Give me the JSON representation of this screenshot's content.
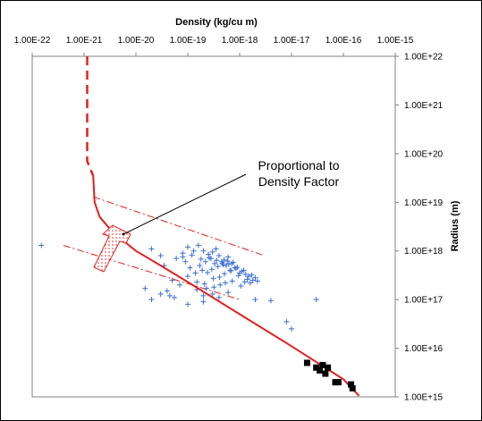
{
  "chart_data": {
    "type": "scatter",
    "title": "",
    "xlabel": "Density (kg/cu m)",
    "ylabel": "Radius (m)",
    "x_scale": "log",
    "y_scale": "log",
    "x_axis_position": "top",
    "y_axis_position": "right",
    "xlim": [
      1e-22,
      1e-15
    ],
    "ylim": [
      1000000000000000.0,
      1e+22
    ],
    "x_tick_labels": [
      "1.00E-22",
      "1.00E-21",
      "1.00E-20",
      "1.00E-19",
      "1.00E-18",
      "1.00E-17",
      "1.00E-16",
      "1.00E-15"
    ],
    "y_tick_labels": [
      "1.00E+22",
      "1.00E+21",
      "1.00E+20",
      "1.00E+19",
      "1.00E+18",
      "1.00E+17",
      "1.00E+16",
      "1.00E+15"
    ],
    "grid": false,
    "legend": "none",
    "annotation": {
      "lines": [
        "Proportional to",
        "Density Factor"
      ],
      "arrow_points_to": [
        1.6e-20,
        1.6e+18
      ]
    },
    "series": [
      {
        "style": "scatter-plus",
        "color": "#3b6fd6",
        "x": [
          1.5e-22,
          2e-20,
          3e-20,
          3.5e-20,
          1.5e-20,
          4e-20,
          1e-19,
          1.3e-19,
          8e-20,
          1.6e-19,
          6e-20,
          9e-20,
          2e-19,
          2.5e-19,
          3e-19,
          3.5e-19,
          4e-19,
          5e-19,
          6e-19,
          7e-19,
          1.1e-19,
          1.7e-19,
          2.2e-19,
          2.8e-19,
          3.3e-19,
          4.5e-19,
          5.5e-19,
          6.5e-19,
          8e-19,
          1e-18,
          1.2e-18,
          1.5e-18,
          1.8e-18,
          2e-18,
          1e-19,
          1.4e-19,
          1.9e-19,
          2.4e-19,
          2.9e-19,
          3.8e-19,
          4.8e-19,
          5.8e-19,
          7.5e-19,
          9e-19,
          1.3e-18,
          1.6e-18,
          8e-20,
          1.2e-19,
          1.8e-19,
          2.6e-19,
          3.6e-19,
          4.6e-19,
          6.2e-19,
          8.5e-19,
          1.1e-18,
          1.4e-18,
          1.7e-18,
          2.2e-18,
          5e-20,
          7e-20,
          1.5e-19,
          2.1e-19,
          3.1e-19,
          4.1e-19,
          5.1e-19,
          6.8e-19,
          9.5e-19,
          1.25e-18,
          1.5e-19,
          2.3e-19,
          3.2e-19,
          4.2e-19,
          5.3e-19,
          7.2e-19,
          1.05e-18,
          2e-19,
          3e-19,
          4e-19,
          6e-19,
          2e-20,
          4.5e-20,
          5.5e-20,
          3e-20,
          1e-19,
          2e-19,
          2e-18,
          4e-18,
          8e-18,
          1e-17,
          3e-17
        ],
        "y": [
          1.3e+18,
          1.1e+18,
          8e+17,
          5e+17,
          1.7e+17,
          1.5e+17,
          1.2e+18,
          1e+18,
          9e+17,
          1.3e+18,
          7e+17,
          6e+17,
          1e+18,
          8.5e+17,
          9.5e+17,
          1.1e+18,
          8e+17,
          6.5e+17,
          7.5e+17,
          5.5e+17,
          4.5e+17,
          5e+17,
          6e+17,
          7e+17,
          5.5e+17,
          6e+17,
          5e+17,
          4e+17,
          4.5e+17,
          3.5e+17,
          4e+17,
          3e+17,
          2.5e+17,
          2.8e+17,
          3e+17,
          3.5e+17,
          4e+17,
          3.6e+17,
          4.2e+17,
          4.8e+17,
          5.2e+17,
          6.2e+17,
          5.8e+17,
          4.6e+17,
          3.3e+17,
          2.2e+17,
          7.5e+17,
          8.2e+17,
          6.8e+17,
          7.2e+17,
          6.4e+17,
          5.6e+17,
          5.4e+17,
          4.4e+17,
          3.8e+17,
          2.6e+17,
          3.2e+17,
          2.4e+17,
          2.5e+17,
          2e+17,
          2.3e+17,
          2.1e+17,
          2.7e+17,
          2.9e+17,
          3.4e+17,
          3.9e+17,
          3.1e+17,
          2.3e+17,
          1.6e+17,
          1.7e+17,
          1.8e+17,
          2e+17,
          2.2e+17,
          2.4e+17,
          1.9e+17,
          1.2e+17,
          1.3e+17,
          1.1e+17,
          1.4e+17,
          1e+17,
          1.2e+17,
          1.1e+17,
          1.3e+17,
          8e+16,
          9e+16,
          1e+17,
          9.5e+16,
          3.5e+16,
          2.5e+16,
          1e+17
        ],
        "name": ""
      },
      {
        "style": "filled-square",
        "color": "#000000",
        "x": [
          2e-17,
          3e-17,
          4e-17,
          5e-17,
          4.5e-17,
          3.5e-17,
          7e-17,
          8e-17,
          1.5e-16,
          1.4e-16
        ],
        "y": [
          5000000000000000.0,
          4000000000000000.0,
          4500000000000000.0,
          4000000000000000.0,
          3000000000000000.0,
          3500000000000000.0,
          2000000000000000.0,
          2000000000000000.0,
          1500000000000000.0,
          1800000000000000.0
        ],
        "name": ""
      },
      {
        "style": "solid-line",
        "color": "#e02020",
        "x": [
          1.5e-21,
          1.6e-21,
          2e-21,
          3e-21,
          5e-21,
          1e-20,
          3e-20,
          1e-19,
          1e-18,
          1e-17,
          1e-16,
          2e-16
        ],
        "y": [
          3.5e+19,
          1e+19,
          5e+18,
          3e+18,
          1.8e+18,
          1e+18,
          5e+17,
          2.3e+17,
          5e+16,
          1.1e+16,
          2300000000000000.0,
          1050000000000000.0
        ],
        "name": ""
      },
      {
        "style": "dashed-line",
        "color": "#e02020",
        "x": [
          1.15e-21,
          1.15e-21,
          1.5e-21
        ],
        "y": [
          1e+22,
          7e+19,
          3.5e+19
        ],
        "name": ""
      },
      {
        "style": "dash-dot-line",
        "color": "#e02020",
        "x": [
          1.5e-21,
          3e-18
        ],
        "y": [
          1.3e+19,
          8e+17
        ],
        "name": ""
      },
      {
        "style": "dash-dot-line",
        "color": "#e02020",
        "x": [
          4e-22,
          1e-18
        ],
        "y": [
          1.3e+18,
          1e+17
        ],
        "name": ""
      }
    ]
  }
}
